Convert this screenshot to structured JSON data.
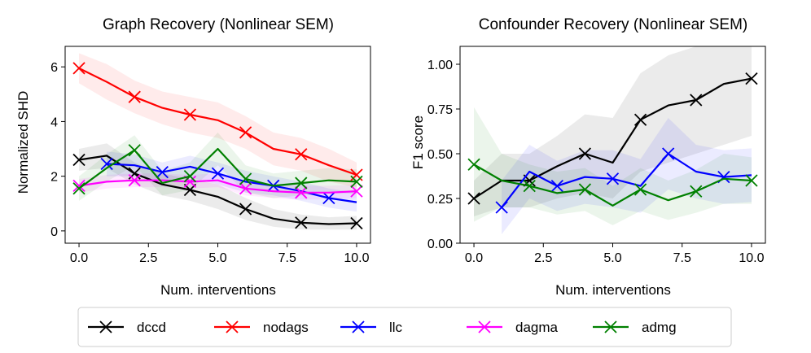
{
  "chart_data": [
    {
      "type": "line",
      "title": "Graph Recovery (Nonlinear SEM)",
      "xlabel": "Num. interventions",
      "ylabel": "Normalized SHD",
      "xlim": [
        -0.5,
        10.5
      ],
      "ylim": [
        -0.45,
        6.75
      ],
      "xticks": [
        0,
        2.5,
        5,
        7.5,
        10
      ],
      "xtick_labels": [
        "0.0",
        "2.5",
        "5.0",
        "7.5",
        "10.0"
      ],
      "yticks": [
        0,
        2,
        4,
        6
      ],
      "ytick_labels": [
        "0",
        "2",
        "4",
        "6"
      ],
      "series": [
        {
          "name": "dccd",
          "color": "#000000",
          "x": [
            0,
            1,
            2,
            3,
            4,
            5,
            6,
            7,
            8,
            9,
            10
          ],
          "y": [
            2.6,
            2.75,
            2.1,
            1.7,
            1.5,
            1.25,
            0.8,
            0.45,
            0.3,
            0.25,
            0.28
          ],
          "lo": [
            2.2,
            2.3,
            1.7,
            1.3,
            1.1,
            0.8,
            0.4,
            0.15,
            0.05,
            0.05,
            0.05
          ],
          "hi": [
            3.0,
            3.2,
            2.5,
            2.1,
            1.9,
            1.7,
            1.2,
            0.8,
            0.6,
            0.5,
            0.55
          ],
          "markers": [
            0,
            2,
            4,
            6,
            8,
            10
          ]
        },
        {
          "name": "nodags",
          "color": "#ff0000",
          "x": [
            0,
            1,
            2,
            3,
            4,
            5,
            6,
            7,
            8,
            9,
            10
          ],
          "y": [
            5.95,
            5.45,
            4.9,
            4.5,
            4.25,
            4.05,
            3.6,
            3.0,
            2.8,
            2.4,
            2.05
          ],
          "lo": [
            5.4,
            4.8,
            4.3,
            3.9,
            3.6,
            3.4,
            3.0,
            2.4,
            2.2,
            1.8,
            1.6
          ],
          "hi": [
            6.5,
            6.1,
            5.5,
            5.1,
            4.9,
            4.7,
            4.2,
            3.6,
            3.4,
            3.0,
            2.5
          ],
          "markers": [
            0,
            2,
            4,
            6,
            8,
            10
          ]
        },
        {
          "name": "llc",
          "color": "#0000ff",
          "x": [
            1,
            2,
            3,
            4,
            5,
            6,
            7,
            8,
            9,
            10
          ],
          "y": [
            2.45,
            2.4,
            2.15,
            2.35,
            2.1,
            1.8,
            1.65,
            1.45,
            1.2,
            1.05
          ],
          "lo": [
            2.0,
            2.0,
            1.8,
            1.95,
            1.7,
            1.4,
            1.3,
            1.1,
            0.85,
            0.7
          ],
          "hi": [
            2.9,
            2.8,
            2.5,
            2.75,
            2.5,
            2.2,
            2.0,
            1.8,
            1.55,
            1.4
          ],
          "markers": [
            1,
            3,
            5,
            7,
            9
          ]
        },
        {
          "name": "dagma",
          "color": "#ff00ff",
          "x": [
            0,
            1,
            2,
            3,
            4,
            5,
            6,
            7,
            8,
            9,
            10
          ],
          "y": [
            1.65,
            1.8,
            1.85,
            1.85,
            1.8,
            1.85,
            1.55,
            1.45,
            1.4,
            1.4,
            1.45
          ],
          "lo": [
            1.4,
            1.55,
            1.6,
            1.6,
            1.55,
            1.6,
            1.3,
            1.2,
            1.15,
            1.15,
            1.2
          ],
          "hi": [
            1.9,
            2.05,
            2.1,
            2.1,
            2.05,
            2.1,
            1.8,
            1.7,
            1.65,
            1.65,
            1.7
          ],
          "markers": [
            0,
            2,
            4,
            6,
            8,
            10
          ]
        },
        {
          "name": "admg",
          "color": "#008000",
          "x": [
            0,
            1,
            2,
            3,
            4,
            5,
            6,
            7,
            8,
            9,
            10
          ],
          "y": [
            1.55,
            2.3,
            2.95,
            1.75,
            2.0,
            3.0,
            1.9,
            1.65,
            1.75,
            1.85,
            1.8
          ],
          "lo": [
            1.1,
            1.8,
            2.4,
            1.3,
            1.5,
            2.4,
            1.4,
            1.2,
            1.3,
            1.4,
            1.35
          ],
          "hi": [
            2.0,
            2.8,
            3.5,
            2.2,
            2.5,
            3.6,
            2.4,
            2.1,
            2.2,
            2.3,
            2.25
          ],
          "markers": [
            0,
            2,
            4,
            6,
            8,
            10
          ]
        }
      ]
    },
    {
      "type": "line",
      "title": "Confounder Recovery (Nonlinear SEM)",
      "xlabel": "Num. interventions",
      "ylabel": "F1 score",
      "xlim": [
        -0.5,
        10.5
      ],
      "ylim": [
        0.0,
        1.1
      ],
      "xticks": [
        0,
        2.5,
        5,
        7.5,
        10
      ],
      "xtick_labels": [
        "0.0",
        "2.5",
        "5.0",
        "7.5",
        "10.0"
      ],
      "yticks": [
        0.0,
        0.25,
        0.5,
        0.75,
        1.0
      ],
      "ytick_labels": [
        "0.00",
        "0.25",
        "0.50",
        "0.75",
        "1.00"
      ],
      "series": [
        {
          "name": "dccd",
          "color": "#000000",
          "x": [
            0,
            1,
            2,
            3,
            4,
            5,
            6,
            7,
            8,
            9,
            10
          ],
          "y": [
            0.25,
            0.35,
            0.35,
            0.43,
            0.5,
            0.45,
            0.69,
            0.77,
            0.8,
            0.89,
            0.92
          ],
          "lo": [
            0.15,
            0.2,
            0.2,
            0.25,
            0.28,
            0.25,
            0.4,
            0.45,
            0.5,
            0.55,
            0.6
          ],
          "hi": [
            0.35,
            0.5,
            0.5,
            0.6,
            0.72,
            0.7,
            0.95,
            1.05,
            1.1,
            1.1,
            1.1
          ],
          "markers": [
            0,
            2,
            4,
            6,
            8,
            10
          ]
        },
        {
          "name": "llc",
          "color": "#0000ff",
          "x": [
            1,
            2,
            3,
            4,
            5,
            6,
            7,
            8,
            9,
            10
          ],
          "y": [
            0.2,
            0.4,
            0.32,
            0.37,
            0.36,
            0.32,
            0.5,
            0.4,
            0.37,
            0.38
          ],
          "lo": [
            0.05,
            0.25,
            0.18,
            0.22,
            0.2,
            0.17,
            0.3,
            0.25,
            0.22,
            0.23
          ],
          "hi": [
            0.35,
            0.55,
            0.46,
            0.52,
            0.52,
            0.47,
            0.7,
            0.55,
            0.52,
            0.53
          ],
          "markers": [
            1,
            3,
            5,
            7,
            9
          ]
        },
        {
          "name": "admg",
          "color": "#008000",
          "x": [
            0,
            1,
            2,
            3,
            4,
            5,
            6,
            7,
            8,
            9,
            10
          ],
          "y": [
            0.44,
            0.35,
            0.32,
            0.28,
            0.3,
            0.21,
            0.3,
            0.24,
            0.29,
            0.36,
            0.35
          ],
          "lo": [
            0.12,
            0.2,
            0.2,
            0.16,
            0.18,
            0.1,
            0.18,
            0.13,
            0.17,
            0.22,
            0.22
          ],
          "hi": [
            0.76,
            0.5,
            0.44,
            0.4,
            0.42,
            0.32,
            0.42,
            0.35,
            0.41,
            0.5,
            0.48
          ],
          "markers": [
            0,
            2,
            4,
            6,
            8,
            10
          ]
        }
      ]
    }
  ],
  "legend": {
    "position": "bottom-center",
    "entries": [
      {
        "label": "dccd",
        "color": "#000000"
      },
      {
        "label": "nodags",
        "color": "#ff0000"
      },
      {
        "label": "llc",
        "color": "#0000ff"
      },
      {
        "label": "dagma",
        "color": "#ff00ff"
      },
      {
        "label": "admg",
        "color": "#008000"
      }
    ]
  }
}
